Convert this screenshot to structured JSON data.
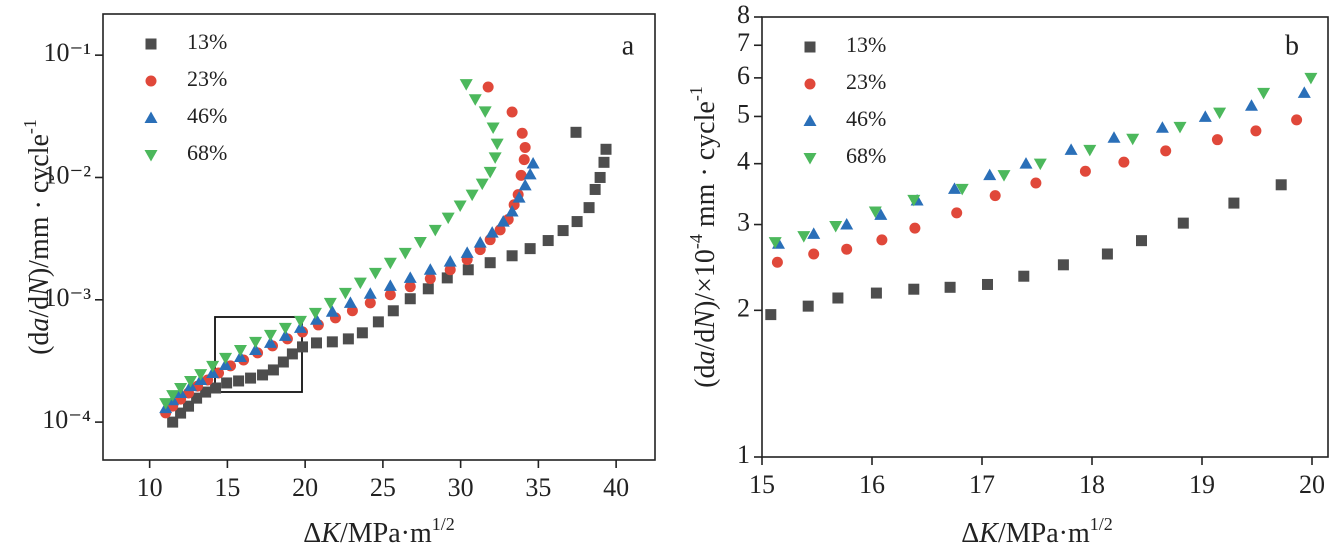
{
  "chart_data": [
    {
      "type": "scatter",
      "annotation": "a",
      "xlabel": [
        "Δ",
        "K",
        "/MPa·m",
        "1/2"
      ],
      "ylabel": [
        "(d",
        "a",
        "/d",
        "N",
        ")/mm · cycle",
        "-1"
      ],
      "xlim": [
        7,
        42.5
      ],
      "xticks": [
        10,
        15,
        20,
        25,
        30,
        35,
        40
      ],
      "ylim": [
        4.9e-05,
        0.217
      ],
      "log_y": true,
      "yticks": [
        {
          "value": 0.0001,
          "label": "10⁻⁴"
        },
        {
          "value": 0.001,
          "label": "10⁻³"
        },
        {
          "value": 0.01,
          "label": "10⁻²"
        },
        {
          "value": 0.1,
          "label": "10⁻¹"
        }
      ],
      "legend": "upper left",
      "grid": false,
      "series": [
        {
          "name": "13%",
          "color": "#4d4d4d",
          "marker": "square",
          "x": [
            11.48,
            11.99,
            12.5,
            13.02,
            13.6,
            14.24,
            14.95,
            15.72,
            16.49,
            17.26,
            17.96,
            18.6,
            19.18,
            19.83,
            20.73,
            21.75,
            22.78,
            23.68,
            24.71,
            25.67,
            26.76,
            27.92,
            29.14,
            30.49,
            31.9,
            33.31,
            34.47,
            35.63,
            36.59,
            37.49,
            38.26,
            38.65,
            38.97,
            39.22,
            39.35,
            37.42
          ],
          "values": [
            0.0001,
            0.0001185,
            0.000135,
            0.000157,
            0.000176,
            0.00019,
            0.000209,
            0.000217,
            0.000229,
            0.000243,
            0.000267,
            0.00031,
            0.000361,
            0.000412,
            0.000444,
            0.000453,
            0.000479,
            0.000537,
            0.00066,
            0.000813,
            0.00102,
            0.00123,
            0.00151,
            0.00176,
            0.00201,
            0.00229,
            0.00262,
            0.00305,
            0.00368,
            0.00436,
            0.00567,
            0.00798,
            0.01,
            0.0133,
            0.017,
            0.0234
          ]
        },
        {
          "name": "23%",
          "color": "#e0483a",
          "marker": "circle",
          "x": [
            11.03,
            11.48,
            11.99,
            12.5,
            13.08,
            13.73,
            14.43,
            15.2,
            16.04,
            16.94,
            17.9,
            18.86,
            19.83,
            20.85,
            21.95,
            23.04,
            24.19,
            25.48,
            26.76,
            28.05,
            29.33,
            30.42,
            31.26,
            31.9,
            32.54,
            33.06,
            33.44,
            33.7,
            33.89,
            34.09,
            34.15,
            33.96,
            33.31,
            31.77
          ],
          "values": [
            0.000119,
            0.000135,
            0.000154,
            0.000173,
            0.000197,
            0.000221,
            0.000252,
            0.000288,
            0.000322,
            0.000368,
            0.00042,
            0.000479,
            0.000546,
            0.000623,
            0.000711,
            0.000813,
            0.000944,
            0.0011,
            0.00128,
            0.00149,
            0.00176,
            0.00213,
            0.00257,
            0.0031,
            0.00373,
            0.00453,
            0.00598,
            0.00724,
            0.0104,
            0.014,
            0.0176,
            0.023,
            0.0343,
            0.0549
          ]
        },
        {
          "name": "46%",
          "color": "#2a6fb8",
          "marker": "triangle-up",
          "x": [
            11.03,
            11.48,
            11.99,
            12.63,
            13.28,
            14.05,
            14.88,
            15.84,
            16.81,
            17.77,
            18.73,
            19.7,
            20.73,
            21.75,
            22.91,
            24.19,
            25.48,
            26.76,
            28.05,
            29.33,
            30.42,
            31.26,
            32.03,
            32.74,
            33.31,
            33.76,
            34.15,
            34.47,
            34.66
          ],
          "values": [
            0.00013,
            0.000151,
            0.000173,
            0.000197,
            0.000221,
            0.000252,
            0.000293,
            0.000341,
            0.000389,
            0.000444,
            0.000507,
            0.00059,
            0.000686,
            0.000798,
            0.000944,
            0.00112,
            0.0013,
            0.00151,
            0.00176,
            0.00205,
            0.00242,
            0.00293,
            0.00354,
            0.00436,
            0.00527,
            0.00685,
            0.00861,
            0.0106,
            0.013
          ]
        },
        {
          "name": "68%",
          "color": "#4cb85c",
          "marker": "triangle-down",
          "x": [
            11.03,
            11.48,
            11.99,
            12.63,
            13.28,
            14.05,
            14.88,
            15.84,
            16.81,
            17.77,
            18.73,
            19.7,
            20.66,
            21.62,
            22.59,
            23.55,
            24.52,
            25.48,
            26.44,
            27.41,
            28.37,
            29.2,
            29.97,
            30.74,
            31.39,
            31.9,
            32.22,
            32.35,
            32.09,
            31.58,
            30.94,
            30.36
          ],
          "values": [
            0.000143,
            0.000166,
            0.00019,
            0.000217,
            0.000247,
            0.000288,
            0.000335,
            0.000389,
            0.000453,
            0.000516,
            0.00059,
            0.000672,
            0.000782,
            0.000944,
            0.00114,
            0.00138,
            0.00166,
            0.00201,
            0.00242,
            0.00297,
            0.00373,
            0.0047,
            0.0059,
            0.00724,
            0.00891,
            0.0111,
            0.0146,
            0.0189,
            0.0256,
            0.0347,
            0.0436,
            0.058
          ]
        }
      ]
    },
    {
      "type": "scatter",
      "annotation": "b",
      "xlabel": [
        "Δ",
        "K",
        "/MPa·m",
        "1/2"
      ],
      "ylabel": [
        "(d",
        "a",
        "/d",
        "N",
        ")/×10",
        "-4",
        " mm · cycle",
        "-1"
      ],
      "xlim": [
        15,
        20
      ],
      "xticks": [
        15,
        16,
        17,
        18,
        19,
        20
      ],
      "ylim": [
        1,
        8
      ],
      "log_y": true,
      "yticks": [
        1,
        2,
        3,
        4,
        5,
        6,
        7,
        8
      ],
      "legend": "upper left",
      "grid": false,
      "series": [
        {
          "name": "13%",
          "color": "#4d4d4d",
          "marker": "square",
          "x": [
            15.08,
            15.42,
            15.69,
            16.04,
            16.38,
            16.71,
            17.05,
            17.38,
            17.74,
            18.14,
            18.45,
            18.83,
            19.29,
            19.72
          ],
          "values": [
            1.96,
            2.04,
            2.12,
            2.17,
            2.21,
            2.23,
            2.26,
            2.35,
            2.48,
            2.61,
            2.78,
            3.02,
            3.32,
            3.62
          ]
        },
        {
          "name": "23%",
          "color": "#e0483a",
          "marker": "circle",
          "x": [
            15.14,
            15.47,
            15.77,
            16.09,
            16.39,
            16.77,
            17.12,
            17.49,
            17.94,
            18.29,
            18.67,
            19.14,
            19.49,
            19.86
          ],
          "values": [
            2.51,
            2.61,
            2.67,
            2.79,
            2.95,
            3.17,
            3.44,
            3.65,
            3.86,
            4.03,
            4.25,
            4.48,
            4.67,
            4.92
          ]
        },
        {
          "name": "46%",
          "color": "#2a6fb8",
          "marker": "triangle-up",
          "x": [
            15.15,
            15.47,
            15.77,
            16.08,
            16.41,
            16.75,
            17.07,
            17.4,
            17.81,
            18.2,
            18.64,
            19.03,
            19.45,
            19.93
          ],
          "values": [
            2.74,
            2.87,
            3.0,
            3.14,
            3.36,
            3.55,
            3.79,
            4.0,
            4.27,
            4.52,
            4.74,
            4.99,
            5.26,
            5.59
          ]
        },
        {
          "name": "68%",
          "color": "#4cb85c",
          "marker": "triangle-down",
          "x": [
            15.12,
            15.38,
            15.67,
            16.03,
            16.38,
            16.82,
            17.2,
            17.53,
            17.98,
            18.37,
            18.8,
            19.16,
            19.56,
            19.99
          ],
          "values": [
            2.76,
            2.84,
            2.98,
            3.19,
            3.37,
            3.55,
            3.79,
            4.0,
            4.27,
            4.5,
            4.76,
            5.09,
            5.59,
            6.0
          ]
        }
      ]
    }
  ]
}
